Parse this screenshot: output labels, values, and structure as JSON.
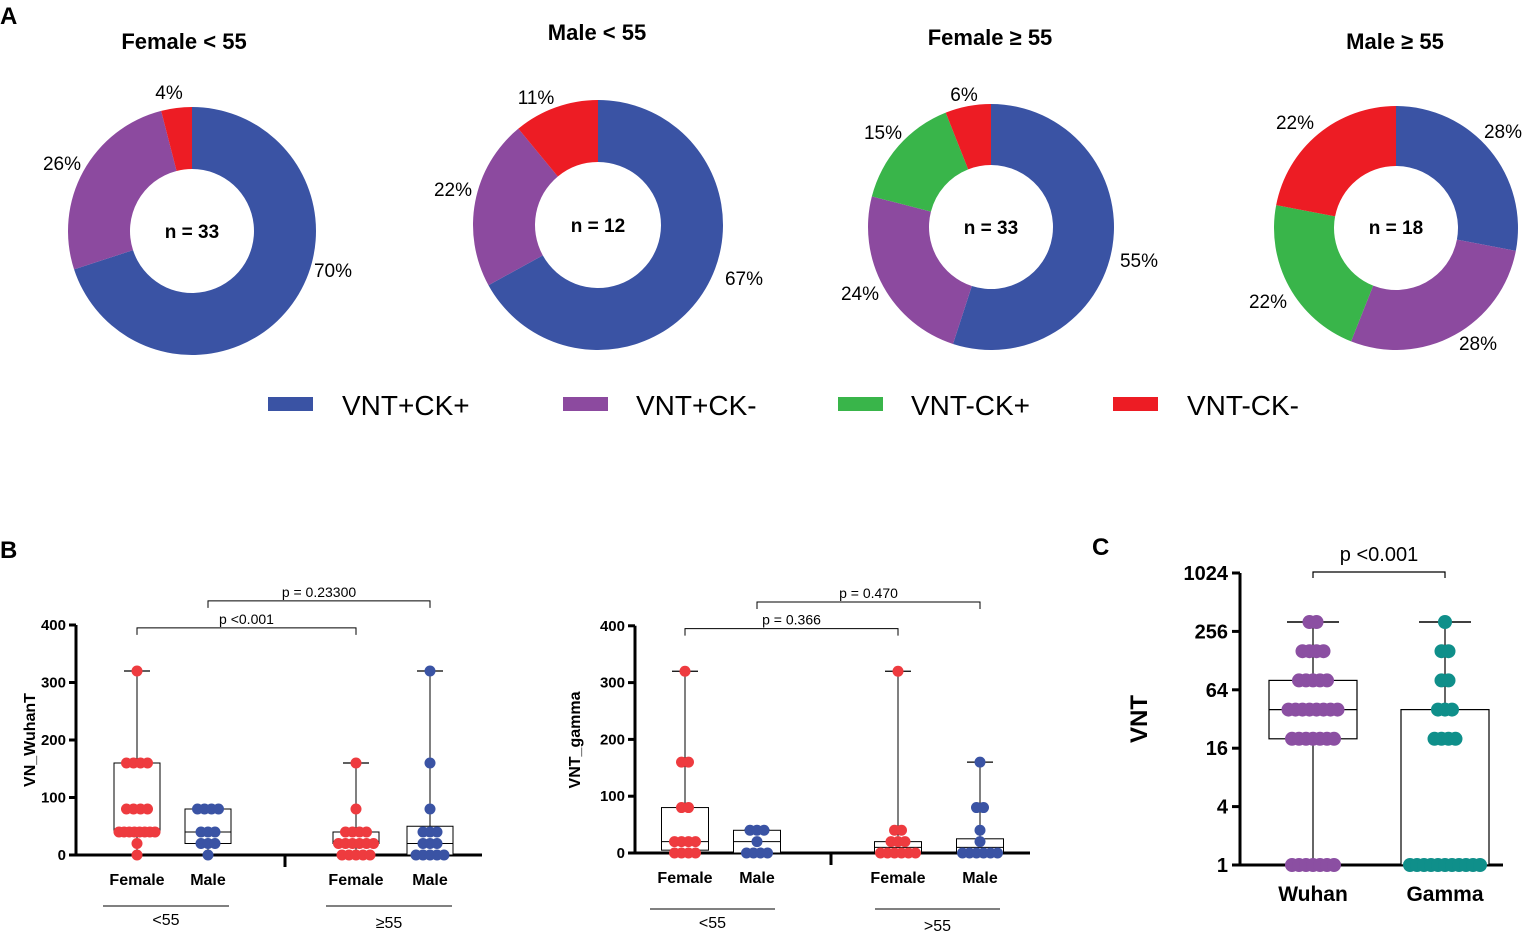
{
  "panels": {
    "a": "A",
    "b": "B",
    "c": "C"
  },
  "colors": {
    "vntpos_ckpos": "#3a53a4",
    "vntpos_ckneg": "#8c4a9f",
    "vntneg_ckpos": "#39b54a",
    "vntneg_ckneg": "#ed1c24",
    "box_female": "#ee3b3f",
    "box_male": "#3a53a4",
    "wuhan": "#8b4fa2",
    "gamma": "#0f8f8a"
  },
  "legend": [
    "VNT+CK+",
    "VNT+CK-",
    "VNT-CK+",
    "VNT-CK-"
  ],
  "chart_data": [
    {
      "type": "pie",
      "variant": "donut",
      "title": "Female < 55",
      "center_label": "n = 33",
      "slices": [
        {
          "name": "VNT+CK+",
          "value": 70,
          "label": "70%"
        },
        {
          "name": "VNT+CK-",
          "value": 26,
          "label": "26%"
        },
        {
          "name": "VNT-CK+",
          "value": 0,
          "label": ""
        },
        {
          "name": "VNT-CK-",
          "value": 4,
          "label": "4%"
        }
      ]
    },
    {
      "type": "pie",
      "variant": "donut",
      "title": "Male < 55",
      "center_label": "n = 12",
      "slices": [
        {
          "name": "VNT+CK+",
          "value": 67,
          "label": "67%"
        },
        {
          "name": "VNT+CK-",
          "value": 22,
          "label": "22%"
        },
        {
          "name": "VNT-CK+",
          "value": 0,
          "label": ""
        },
        {
          "name": "VNT-CK-",
          "value": 11,
          "label": "11%"
        }
      ]
    },
    {
      "type": "pie",
      "variant": "donut",
      "title": "Female ≥ 55",
      "center_label": "n = 33",
      "slices": [
        {
          "name": "VNT+CK+",
          "value": 55,
          "label": "55%"
        },
        {
          "name": "VNT+CK-",
          "value": 24,
          "label": "24%"
        },
        {
          "name": "VNT-CK+",
          "value": 15,
          "label": "15%"
        },
        {
          "name": "VNT-CK-",
          "value": 6,
          "label": "6%"
        }
      ]
    },
    {
      "type": "pie",
      "variant": "donut",
      "title": "Male ≥ 55",
      "center_label": "n = 18",
      "slices": [
        {
          "name": "VNT+CK+",
          "value": 28,
          "label": "28%"
        },
        {
          "name": "VNT+CK-",
          "value": 28,
          "label": "28%"
        },
        {
          "name": "VNT-CK+",
          "value": 22,
          "label": "22%"
        },
        {
          "name": "VNT-CK-",
          "value": 22,
          "label": "22%"
        }
      ]
    },
    {
      "type": "box",
      "ylabel": "VN_WuhanT",
      "ylim": [
        0,
        400
      ],
      "yticks": [
        0,
        100,
        200,
        300,
        400
      ],
      "groups": [
        {
          "label": "<55",
          "members": [
            0,
            1
          ]
        },
        {
          "label": "≥55",
          "members": [
            2,
            3
          ]
        }
      ],
      "boxes": [
        {
          "category": "Female",
          "color": "female",
          "min": 0,
          "q1": 40,
          "median": 40,
          "q3": 160,
          "max": 320,
          "points": [
            320,
            160,
            160,
            160,
            160,
            80,
            80,
            80,
            80,
            40,
            40,
            40,
            40,
            40,
            40,
            40,
            40,
            20,
            0
          ]
        },
        {
          "category": "Male",
          "color": "male",
          "min": 0,
          "q1": 20,
          "median": 40,
          "q3": 80,
          "max": 80,
          "points": [
            80,
            80,
            80,
            80,
            40,
            40,
            40,
            20,
            20,
            20,
            0
          ]
        },
        {
          "category": "Female",
          "color": "female",
          "min": 0,
          "q1": 20,
          "median": 20,
          "q3": 40,
          "max": 160,
          "points": [
            160,
            80,
            40,
            40,
            40,
            40,
            20,
            20,
            20,
            20,
            20,
            20,
            0,
            0,
            0,
            0,
            0
          ]
        },
        {
          "category": "Male",
          "color": "male",
          "min": 0,
          "q1": 0,
          "median": 20,
          "q3": 50,
          "max": 320,
          "points": [
            320,
            160,
            80,
            40,
            40,
            40,
            20,
            20,
            20,
            0,
            0,
            0,
            0,
            0
          ]
        }
      ],
      "comparisons": [
        {
          "label": "p <0.001",
          "from": 0,
          "to": 2,
          "y": 395
        },
        {
          "label": "p = 0.23300",
          "from": 1,
          "to": 3,
          "y": 442
        }
      ]
    },
    {
      "type": "box",
      "ylabel": "VNT_gamma",
      "ylim": [
        0,
        400
      ],
      "yticks": [
        0,
        100,
        200,
        300,
        400
      ],
      "groups": [
        {
          "label": "<55",
          "members": [
            0,
            1
          ]
        },
        {
          "label": ">55",
          "members": [
            2,
            3
          ]
        }
      ],
      "boxes": [
        {
          "category": "Female",
          "color": "female",
          "min": 0,
          "q1": 5,
          "median": 20,
          "q3": 80,
          "max": 320,
          "points": [
            320,
            160,
            160,
            80,
            80,
            20,
            20,
            20,
            20,
            0,
            0,
            0,
            0
          ]
        },
        {
          "category": "Male",
          "color": "male",
          "min": 0,
          "q1": 0,
          "median": 20,
          "q3": 40,
          "max": 40,
          "points": [
            40,
            40,
            40,
            20,
            0,
            0,
            0,
            0
          ]
        },
        {
          "category": "Female",
          "color": "female",
          "min": 0,
          "q1": 0,
          "median": 10,
          "q3": 20,
          "max": 320,
          "points": [
            320,
            40,
            40,
            20,
            20,
            20,
            0,
            0,
            0,
            0,
            0,
            0
          ]
        },
        {
          "category": "Male",
          "color": "male",
          "min": 0,
          "q1": 0,
          "median": 10,
          "q3": 25,
          "max": 160,
          "points": [
            160,
            80,
            80,
            40,
            20,
            0,
            0,
            0,
            0,
            0,
            0
          ]
        }
      ],
      "comparisons": [
        {
          "label": "p = 0.366",
          "from": 0,
          "to": 2,
          "y": 395
        },
        {
          "label": "p = 0.470",
          "from": 1,
          "to": 3,
          "y": 442
        }
      ]
    },
    {
      "type": "box",
      "ylabel": "VNT",
      "yscale": "log2",
      "ylim": [
        1,
        1024
      ],
      "yticks": [
        1,
        4,
        16,
        64,
        256,
        1024
      ],
      "boxes": [
        {
          "category": "Wuhan",
          "color": "wuhan",
          "min": 1,
          "q1": 20,
          "median": 40,
          "q3": 80,
          "max": 320,
          "points": [
            320,
            320,
            160,
            160,
            160,
            160,
            80,
            80,
            80,
            80,
            80,
            40,
            40,
            40,
            40,
            40,
            40,
            40,
            40,
            20,
            20,
            20,
            20,
            20,
            20,
            20,
            1,
            1,
            1,
            1,
            1,
            1,
            1
          ]
        },
        {
          "category": "Gamma",
          "color": "gamma",
          "min": 1,
          "q1": 1,
          "median": 1,
          "q3": 40,
          "max": 320,
          "points": [
            320,
            160,
            160,
            80,
            80,
            40,
            40,
            40,
            20,
            20,
            20,
            20,
            1,
            1,
            1,
            1,
            1,
            1,
            1,
            1,
            1,
            1,
            1
          ]
        }
      ],
      "comparisons": [
        {
          "label": "p <0.001",
          "from": 0,
          "to": 1,
          "y": 1600
        }
      ]
    }
  ]
}
